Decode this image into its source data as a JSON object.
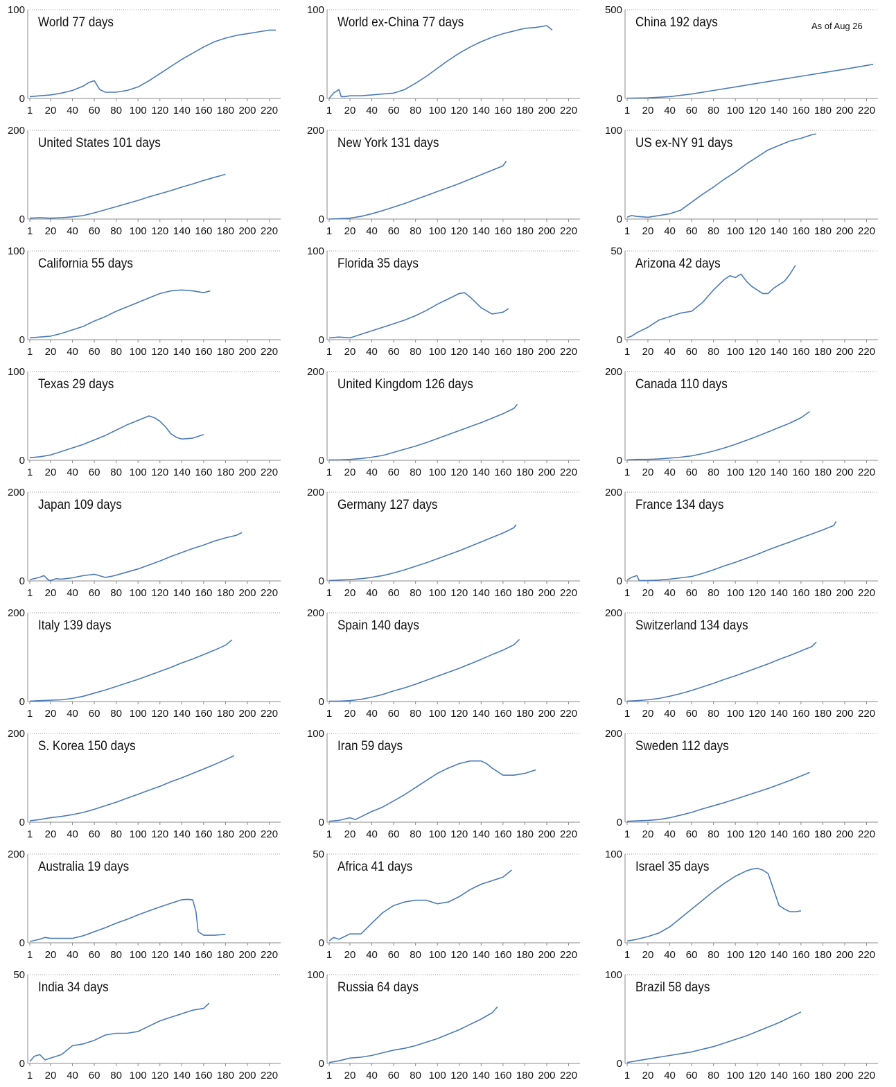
{
  "note": "As of Aug 26",
  "x_ticks": [
    "1",
    "20",
    "40",
    "60",
    "80",
    "100",
    "120",
    "140",
    "160",
    "180",
    "200",
    "220"
  ],
  "chart_data": [
    {
      "type": "line",
      "title": "World 77 days",
      "ylim": [
        0,
        100
      ],
      "y_ticks": [
        "0",
        "100"
      ],
      "x": [
        1,
        10,
        20,
        30,
        40,
        50,
        55,
        60,
        65,
        70,
        80,
        90,
        100,
        110,
        120,
        130,
        140,
        150,
        160,
        170,
        180,
        190,
        200,
        210,
        220,
        226
      ],
      "y": [
        2,
        3,
        4,
        6,
        9,
        14,
        18,
        20,
        10,
        7,
        7,
        9,
        13,
        20,
        28,
        36,
        44,
        51,
        58,
        64,
        68,
        71,
        73,
        75,
        77,
        77
      ]
    },
    {
      "type": "line",
      "title": "World ex-China 77 days",
      "ylim": [
        0,
        100
      ],
      "y_ticks": [
        "0",
        "100"
      ],
      "x": [
        1,
        5,
        10,
        12,
        15,
        20,
        30,
        40,
        50,
        60,
        70,
        80,
        90,
        100,
        110,
        120,
        130,
        140,
        150,
        160,
        170,
        180,
        190,
        200,
        205
      ],
      "y": [
        0,
        6,
        10,
        2,
        2,
        3,
        3,
        4,
        5,
        6,
        10,
        17,
        25,
        34,
        43,
        51,
        58,
        64,
        69,
        73,
        76,
        79,
        80,
        82,
        77
      ]
    },
    {
      "type": "line",
      "title": "China 192 days",
      "ylim": [
        0,
        500
      ],
      "y_ticks": [
        "0",
        "500"
      ],
      "x": [
        1,
        20,
        40,
        60,
        80,
        100,
        120,
        140,
        160,
        180,
        200,
        226
      ],
      "y": [
        1,
        3,
        10,
        25,
        45,
        65,
        85,
        105,
        125,
        145,
        165,
        192
      ]
    },
    {
      "type": "line",
      "title": "United States 101 days",
      "ylim": [
        0,
        200
      ],
      "y_ticks": [
        "0",
        "200"
      ],
      "x": [
        1,
        10,
        20,
        30,
        40,
        50,
        60,
        70,
        80,
        90,
        100,
        110,
        120,
        130,
        140,
        150,
        160,
        170,
        180
      ],
      "y": [
        2,
        3,
        2,
        3,
        5,
        8,
        14,
        21,
        28,
        35,
        42,
        50,
        57,
        64,
        72,
        79,
        87,
        94,
        101
      ]
    },
    {
      "type": "line",
      "title": "New York 131 days",
      "ylim": [
        0,
        200
      ],
      "y_ticks": [
        "0",
        "200"
      ],
      "x": [
        1,
        10,
        20,
        30,
        40,
        50,
        60,
        70,
        80,
        90,
        100,
        110,
        120,
        130,
        140,
        150,
        160,
        163
      ],
      "y": [
        0,
        1,
        2,
        6,
        12,
        19,
        27,
        35,
        44,
        53,
        62,
        71,
        80,
        90,
        100,
        110,
        120,
        131
      ]
    },
    {
      "type": "line",
      "title": "US ex-NY 91 days",
      "ylim": [
        0,
        100
      ],
      "y_ticks": [
        "0",
        "100"
      ],
      "x": [
        1,
        5,
        10,
        20,
        30,
        40,
        50,
        60,
        70,
        80,
        90,
        100,
        110,
        120,
        130,
        140,
        150,
        160,
        170,
        174
      ],
      "y": [
        2,
        4,
        3,
        2,
        4,
        6,
        10,
        19,
        28,
        36,
        45,
        53,
        62,
        70,
        78,
        83,
        88,
        91,
        95,
        96
      ]
    },
    {
      "type": "line",
      "title": "California 55 days",
      "ylim": [
        0,
        100
      ],
      "y_ticks": [
        "0",
        "100"
      ],
      "x": [
        1,
        10,
        20,
        30,
        40,
        50,
        60,
        70,
        80,
        90,
        100,
        110,
        120,
        130,
        140,
        150,
        160,
        166
      ],
      "y": [
        2,
        3,
        4,
        7,
        11,
        15,
        21,
        26,
        32,
        37,
        42,
        47,
        52,
        55,
        56,
        55,
        53,
        55
      ]
    },
    {
      "type": "line",
      "title": "Florida 35 days",
      "ylim": [
        0,
        100
      ],
      "y_ticks": [
        "0",
        "100"
      ],
      "x": [
        1,
        10,
        20,
        30,
        40,
        50,
        60,
        70,
        80,
        90,
        100,
        110,
        120,
        125,
        130,
        140,
        150,
        160,
        165
      ],
      "y": [
        2,
        3,
        2,
        6,
        10,
        14,
        18,
        22,
        27,
        33,
        40,
        46,
        52,
        53,
        48,
        36,
        29,
        31,
        35
      ]
    },
    {
      "type": "line",
      "title": "Arizona 42 days",
      "ylim": [
        0,
        50
      ],
      "y_ticks": [
        "0",
        "50"
      ],
      "x": [
        1,
        5,
        10,
        20,
        30,
        40,
        50,
        60,
        70,
        80,
        90,
        95,
        100,
        105,
        110,
        115,
        120,
        125,
        130,
        135,
        140,
        145,
        150,
        155
      ],
      "y": [
        1,
        2,
        4,
        7,
        11,
        13,
        15,
        16,
        21,
        28,
        34,
        36,
        35,
        37,
        33,
        30,
        28,
        26,
        26,
        29,
        31,
        33,
        37,
        42
      ]
    },
    {
      "type": "line",
      "title": "Texas 29 days",
      "ylim": [
        0,
        100
      ],
      "y_ticks": [
        "0",
        "100"
      ],
      "x": [
        1,
        10,
        20,
        30,
        40,
        50,
        60,
        70,
        80,
        90,
        100,
        110,
        115,
        120,
        125,
        130,
        135,
        140,
        150,
        160
      ],
      "y": [
        3,
        4,
        6,
        10,
        14,
        18,
        23,
        28,
        34,
        40,
        45,
        50,
        48,
        44,
        38,
        30,
        26,
        24,
        25,
        29
      ]
    },
    {
      "type": "line",
      "title": "United Kingdom 126 days",
      "ylim": [
        0,
        200
      ],
      "y_ticks": [
        "0",
        "200"
      ],
      "x": [
        1,
        10,
        20,
        30,
        40,
        50,
        60,
        70,
        80,
        90,
        100,
        110,
        120,
        130,
        140,
        150,
        160,
        170,
        173
      ],
      "y": [
        1,
        1,
        2,
        4,
        7,
        11,
        18,
        25,
        32,
        40,
        49,
        58,
        67,
        76,
        85,
        95,
        105,
        117,
        126
      ]
    },
    {
      "type": "line",
      "title": "Canada 110 days",
      "ylim": [
        0,
        200
      ],
      "y_ticks": [
        "0",
        "200"
      ],
      "x": [
        1,
        10,
        20,
        30,
        40,
        50,
        60,
        70,
        80,
        90,
        100,
        110,
        120,
        130,
        140,
        150,
        160,
        168
      ],
      "y": [
        1,
        2,
        2,
        3,
        5,
        7,
        10,
        15,
        21,
        28,
        36,
        45,
        54,
        64,
        74,
        84,
        96,
        110
      ]
    },
    {
      "type": "line",
      "title": "Japan 109 days",
      "ylim": [
        0,
        200
      ],
      "y_ticks": [
        "0",
        "200"
      ],
      "x": [
        1,
        10,
        14,
        18,
        20,
        25,
        30,
        40,
        50,
        60,
        70,
        75,
        80,
        90,
        100,
        110,
        120,
        130,
        140,
        150,
        160,
        170,
        180,
        190,
        195
      ],
      "y": [
        3,
        8,
        12,
        2,
        1,
        5,
        4,
        7,
        12,
        15,
        8,
        10,
        13,
        20,
        27,
        36,
        45,
        55,
        64,
        73,
        81,
        90,
        97,
        103,
        109
      ]
    },
    {
      "type": "line",
      "title": "Germany 127 days",
      "ylim": [
        0,
        200
      ],
      "y_ticks": [
        "0",
        "200"
      ],
      "x": [
        1,
        10,
        20,
        30,
        40,
        50,
        60,
        70,
        80,
        90,
        100,
        110,
        120,
        130,
        140,
        150,
        160,
        170,
        172
      ],
      "y": [
        1,
        2,
        3,
        5,
        8,
        12,
        18,
        25,
        33,
        41,
        50,
        59,
        68,
        78,
        88,
        98,
        108,
        120,
        127
      ]
    },
    {
      "type": "line",
      "title": "France 134 days",
      "ylim": [
        0,
        200
      ],
      "y_ticks": [
        "0",
        "200"
      ],
      "x": [
        1,
        5,
        10,
        12,
        20,
        30,
        40,
        50,
        60,
        70,
        80,
        90,
        100,
        110,
        120,
        130,
        140,
        150,
        160,
        170,
        180,
        190,
        192
      ],
      "y": [
        2,
        8,
        12,
        1,
        1,
        2,
        4,
        7,
        10,
        17,
        25,
        34,
        42,
        51,
        60,
        70,
        79,
        88,
        97,
        106,
        115,
        125,
        134
      ]
    },
    {
      "type": "line",
      "title": "Italy 139 days",
      "ylim": [
        0,
        200
      ],
      "y_ticks": [
        "0",
        "200"
      ],
      "x": [
        1,
        10,
        20,
        30,
        40,
        50,
        60,
        70,
        80,
        90,
        100,
        110,
        120,
        130,
        140,
        150,
        160,
        170,
        180,
        186
      ],
      "y": [
        1,
        2,
        3,
        4,
        7,
        12,
        19,
        26,
        34,
        42,
        50,
        59,
        68,
        77,
        87,
        96,
        106,
        116,
        127,
        139
      ]
    },
    {
      "type": "line",
      "title": "Spain 140 days",
      "ylim": [
        0,
        200
      ],
      "y_ticks": [
        "0",
        "200"
      ],
      "x": [
        1,
        10,
        20,
        30,
        40,
        50,
        60,
        70,
        80,
        90,
        100,
        110,
        120,
        130,
        140,
        150,
        160,
        170,
        175
      ],
      "y": [
        1,
        1,
        2,
        5,
        10,
        16,
        24,
        31,
        39,
        48,
        57,
        66,
        75,
        85,
        95,
        106,
        116,
        128,
        140
      ]
    },
    {
      "type": "line",
      "title": "Switzerland 134 days",
      "ylim": [
        0,
        200
      ],
      "y_ticks": [
        "0",
        "200"
      ],
      "x": [
        1,
        10,
        20,
        30,
        40,
        50,
        60,
        70,
        80,
        90,
        100,
        110,
        120,
        130,
        140,
        150,
        160,
        170,
        174
      ],
      "y": [
        1,
        2,
        4,
        7,
        12,
        18,
        25,
        33,
        41,
        50,
        58,
        67,
        76,
        85,
        95,
        104,
        114,
        124,
        134
      ]
    },
    {
      "type": "line",
      "title": "S. Korea 150 days",
      "ylim": [
        0,
        200
      ],
      "y_ticks": [
        "0",
        "200"
      ],
      "x": [
        1,
        10,
        20,
        30,
        40,
        50,
        60,
        70,
        80,
        90,
        100,
        110,
        120,
        130,
        140,
        150,
        160,
        170,
        180,
        188
      ],
      "y": [
        3,
        6,
        10,
        13,
        17,
        22,
        29,
        37,
        45,
        54,
        63,
        72,
        81,
        91,
        100,
        110,
        120,
        130,
        141,
        150
      ]
    },
    {
      "type": "line",
      "title": "Iran 59 days",
      "ylim": [
        0,
        100
      ],
      "y_ticks": [
        "0",
        "100"
      ],
      "x": [
        1,
        10,
        20,
        25,
        30,
        40,
        50,
        60,
        70,
        80,
        90,
        100,
        110,
        120,
        130,
        140,
        145,
        150,
        160,
        170,
        180,
        190
      ],
      "y": [
        1,
        2,
        5,
        3,
        6,
        12,
        17,
        24,
        31,
        39,
        47,
        55,
        61,
        66,
        69,
        69,
        66,
        61,
        53,
        53,
        55,
        59
      ]
    },
    {
      "type": "line",
      "title": "Sweden 112 days",
      "ylim": [
        0,
        200
      ],
      "y_ticks": [
        "0",
        "200"
      ],
      "x": [
        1,
        10,
        20,
        30,
        40,
        50,
        60,
        70,
        80,
        90,
        100,
        110,
        120,
        130,
        140,
        150,
        160,
        168
      ],
      "y": [
        2,
        3,
        4,
        6,
        10,
        16,
        22,
        30,
        37,
        44,
        52,
        60,
        68,
        76,
        85,
        94,
        104,
        112
      ]
    },
    {
      "type": "line",
      "title": "Australia 19 days",
      "ylim": [
        0,
        200
      ],
      "y_ticks": [
        "0",
        "200"
      ],
      "x": [
        1,
        10,
        15,
        20,
        30,
        40,
        50,
        60,
        70,
        80,
        90,
        100,
        110,
        120,
        130,
        140,
        145,
        150,
        153,
        155,
        160,
        170,
        180
      ],
      "y": [
        3,
        8,
        12,
        10,
        10,
        10,
        16,
        25,
        34,
        44,
        53,
        63,
        72,
        81,
        89,
        97,
        98,
        97,
        70,
        25,
        17,
        17,
        19
      ]
    },
    {
      "type": "line",
      "title": "Africa 41 days",
      "ylim": [
        0,
        50
      ],
      "y_ticks": [
        "0",
        "50"
      ],
      "x": [
        1,
        5,
        10,
        20,
        30,
        40,
        50,
        60,
        70,
        80,
        90,
        100,
        110,
        120,
        130,
        140,
        150,
        160,
        168
      ],
      "y": [
        1,
        3,
        2,
        5,
        5,
        11,
        17,
        21,
        23,
        24,
        24,
        22,
        23,
        26,
        30,
        33,
        35,
        37,
        41
      ]
    },
    {
      "type": "line",
      "title": "Israel 35 days",
      "ylim": [
        0,
        100
      ],
      "y_ticks": [
        "0",
        "100"
      ],
      "x": [
        1,
        10,
        20,
        30,
        40,
        50,
        60,
        70,
        80,
        90,
        100,
        110,
        115,
        120,
        125,
        130,
        135,
        140,
        145,
        150,
        155,
        160
      ],
      "y": [
        2,
        4,
        7,
        11,
        18,
        28,
        38,
        48,
        58,
        67,
        75,
        81,
        83,
        84,
        82,
        78,
        60,
        42,
        38,
        35,
        35,
        36
      ]
    },
    {
      "type": "line",
      "title": "India 34 days",
      "ylim": [
        0,
        50
      ],
      "y_ticks": [
        "0",
        "50"
      ],
      "x": [
        1,
        5,
        10,
        15,
        20,
        30,
        40,
        50,
        60,
        70,
        80,
        90,
        100,
        110,
        120,
        130,
        140,
        150,
        160,
        165
      ],
      "y": [
        1,
        4,
        5,
        2,
        3,
        5,
        10,
        11,
        13,
        16,
        17,
        17,
        18,
        21,
        24,
        26,
        28,
        30,
        31,
        34
      ]
    },
    {
      "type": "line",
      "title": "Russia 64 days",
      "ylim": [
        0,
        100
      ],
      "y_ticks": [
        "0",
        "100"
      ],
      "x": [
        1,
        10,
        20,
        30,
        40,
        50,
        60,
        70,
        80,
        90,
        100,
        110,
        120,
        130,
        140,
        150,
        155
      ],
      "y": [
        1,
        3,
        6,
        7,
        9,
        12,
        15,
        17,
        20,
        24,
        28,
        33,
        38,
        44,
        50,
        57,
        64
      ]
    },
    {
      "type": "line",
      "title": "Brazil 58 days",
      "ylim": [
        0,
        100
      ],
      "y_ticks": [
        "0",
        "100"
      ],
      "x": [
        1,
        10,
        20,
        30,
        40,
        50,
        60,
        70,
        80,
        90,
        100,
        110,
        120,
        130,
        140,
        150,
        160
      ],
      "y": [
        1,
        3,
        5,
        7,
        9,
        11,
        13,
        16,
        19,
        23,
        27,
        31,
        36,
        41,
        46,
        52,
        58
      ]
    }
  ]
}
